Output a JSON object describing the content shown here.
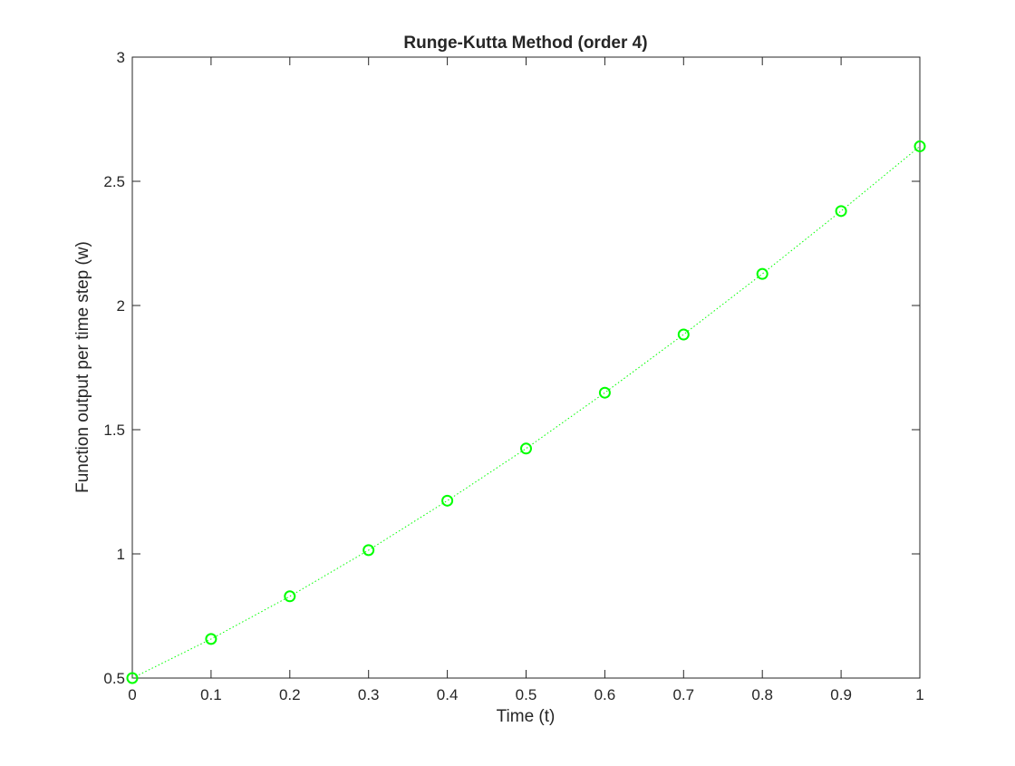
{
  "chart_data": {
    "type": "line",
    "title": "Runge-Kutta Method (order 4)",
    "xlabel": "Time (t)",
    "ylabel": "Function output per time step (w)",
    "xlim": [
      0,
      1
    ],
    "ylim": [
      0.5,
      3
    ],
    "xticks": [
      0,
      0.1,
      0.2,
      0.3,
      0.4,
      0.5,
      0.6,
      0.7,
      0.8,
      0.9,
      1
    ],
    "xtick_labels": [
      "0",
      "0.1",
      "0.2",
      "0.3",
      "0.4",
      "0.5",
      "0.6",
      "0.7",
      "0.8",
      "0.9",
      "1"
    ],
    "yticks": [
      0.5,
      1,
      1.5,
      2,
      2.5,
      3
    ],
    "ytick_labels": [
      "0.5",
      "1",
      "1.5",
      "2",
      "2.5",
      "3"
    ],
    "grid": false,
    "line_style": "dotted",
    "marker": "circle",
    "color": "#00ff00",
    "series": [
      {
        "x": [
          0,
          0.1,
          0.2,
          0.3,
          0.4,
          0.5,
          0.6,
          0.7,
          0.8,
          0.9,
          1
        ],
        "values": [
          0.5,
          0.6574,
          0.8293,
          1.0151,
          1.2141,
          1.4241,
          1.6489,
          1.8831,
          2.1272,
          2.3802,
          2.6408
        ]
      }
    ]
  }
}
